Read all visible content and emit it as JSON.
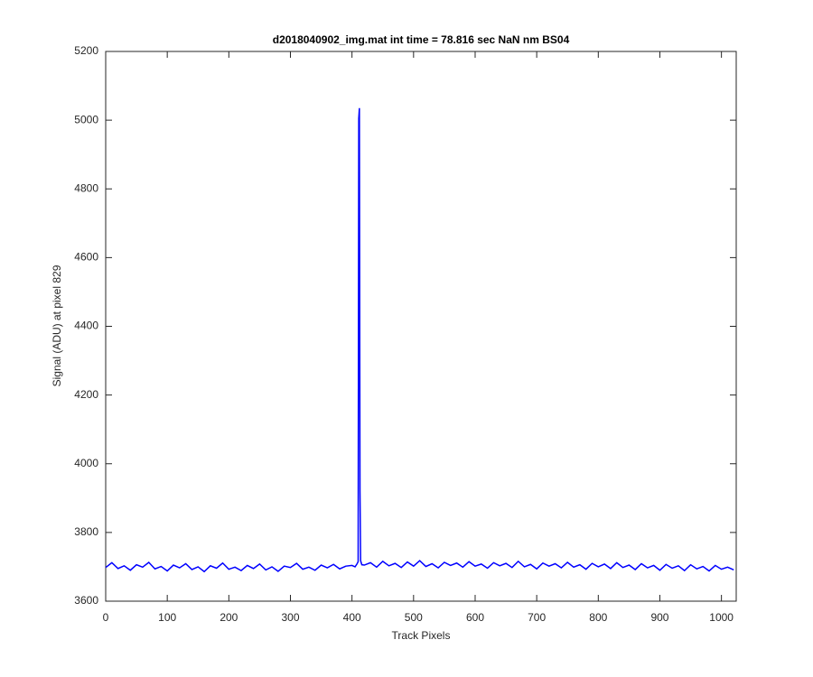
{
  "chart_data": {
    "type": "line",
    "title": "d2018040902_img.mat int time = 78.816 sec  NaN nm BS04",
    "xlabel": "Track Pixels",
    "ylabel": "Signal (ADU) at pixel 829",
    "color": "#0000ff",
    "x": [
      0,
      10,
      20,
      30,
      40,
      50,
      60,
      70,
      80,
      90,
      100,
      110,
      120,
      130,
      140,
      150,
      160,
      170,
      180,
      190,
      200,
      210,
      220,
      230,
      240,
      250,
      260,
      270,
      280,
      290,
      300,
      310,
      320,
      330,
      340,
      350,
      360,
      370,
      380,
      390,
      400,
      405,
      408,
      410,
      411,
      412,
      413,
      414,
      416,
      420,
      430,
      440,
      450,
      460,
      470,
      480,
      490,
      500,
      510,
      520,
      530,
      540,
      550,
      560,
      570,
      580,
      590,
      600,
      610,
      620,
      630,
      640,
      650,
      660,
      670,
      680,
      690,
      700,
      710,
      720,
      730,
      740,
      750,
      760,
      770,
      780,
      790,
      800,
      810,
      820,
      830,
      840,
      850,
      860,
      870,
      880,
      890,
      900,
      910,
      920,
      930,
      940,
      950,
      960,
      970,
      980,
      990,
      1000,
      1010,
      1020
    ],
    "values": [
      3698,
      3712,
      3695,
      3703,
      3690,
      3706,
      3699,
      3713,
      3694,
      3701,
      3688,
      3705,
      3697,
      3709,
      3692,
      3700,
      3686,
      3703,
      3696,
      3711,
      3693,
      3699,
      3689,
      3704,
      3695,
      3708,
      3691,
      3700,
      3687,
      3702,
      3698,
      3710,
      3693,
      3699,
      3690,
      3705,
      3697,
      3707,
      3694,
      3702,
      3704,
      3700,
      3708,
      3715,
      5005,
      5035,
      3920,
      3718,
      3706,
      3705,
      3712,
      3699,
      3716,
      3703,
      3710,
      3698,
      3714,
      3702,
      3718,
      3701,
      3709,
      3697,
      3713,
      3704,
      3711,
      3699,
      3715,
      3702,
      3708,
      3696,
      3712,
      3703,
      3710,
      3698,
      3716,
      3700,
      3707,
      3694,
      3711,
      3702,
      3709,
      3697,
      3713,
      3699,
      3706,
      3693,
      3710,
      3700,
      3708,
      3695,
      3712,
      3698,
      3705,
      3692,
      3709,
      3697,
      3704,
      3690,
      3707,
      3696,
      3703,
      3689,
      3706,
      3694,
      3701,
      3688,
      3704,
      3693,
      3699,
      3691
    ],
    "xlim": [
      0,
      1024
    ],
    "ylim": [
      3600,
      5200
    ],
    "xticks": [
      0,
      100,
      200,
      300,
      400,
      500,
      600,
      700,
      800,
      900,
      1000
    ],
    "yticks": [
      3600,
      3800,
      4000,
      4200,
      4400,
      4600,
      4800,
      5000,
      5200
    ],
    "grid": false
  }
}
